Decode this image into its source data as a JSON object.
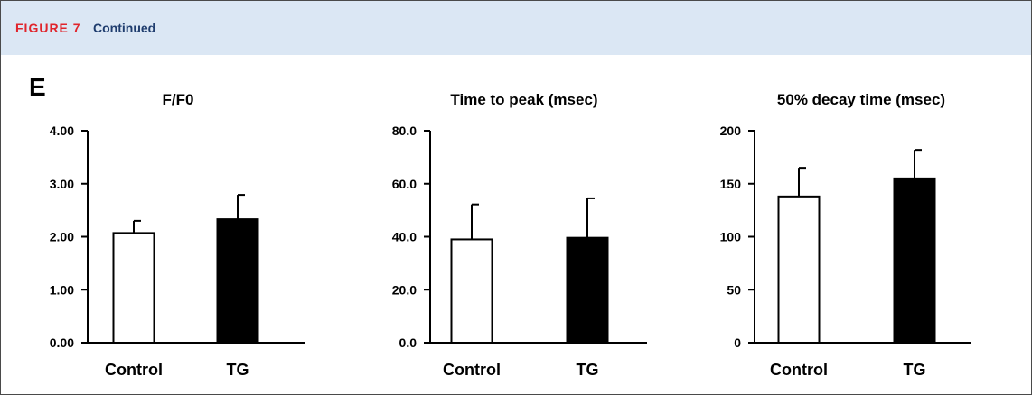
{
  "header": {
    "figure_label": "FIGURE 7",
    "continued": "Continued"
  },
  "panel_letter": "E",
  "colors": {
    "header_bg": "#dbe7f4",
    "figure_label": "#e0242b",
    "continued": "#1f3d6e"
  },
  "chart_data": [
    {
      "type": "bar",
      "title": "F/F0",
      "categories": [
        "Control",
        "TG"
      ],
      "values": [
        2.07,
        2.33
      ],
      "errors": [
        0.23,
        0.46
      ],
      "bar_fills": [
        "#ffffff",
        "#000000"
      ],
      "ylim": [
        0,
        4
      ],
      "yticks": [
        0,
        1,
        2,
        3,
        4
      ],
      "ytick_labels": [
        "0.00",
        "1.00",
        "2.00",
        "3.00",
        "4.00"
      ],
      "xlabel": "",
      "ylabel": "",
      "grid": false
    },
    {
      "type": "bar",
      "title": "Time to peak (msec)",
      "categories": [
        "Control",
        "TG"
      ],
      "values": [
        39.0,
        39.6
      ],
      "errors": [
        13.2,
        14.9
      ],
      "bar_fills": [
        "#ffffff",
        "#000000"
      ],
      "ylim": [
        0,
        80
      ],
      "yticks": [
        0,
        20,
        40,
        60,
        80
      ],
      "ytick_labels": [
        "0.0",
        "20.0",
        "40.0",
        "60.0",
        "80.0"
      ],
      "xlabel": "",
      "ylabel": "",
      "grid": false
    },
    {
      "type": "bar",
      "title": "50% decay time (msec)",
      "categories": [
        "Control",
        "TG"
      ],
      "values": [
        138,
        155
      ],
      "errors": [
        27,
        27
      ],
      "bar_fills": [
        "#ffffff",
        "#000000"
      ],
      "ylim": [
        0,
        200
      ],
      "yticks": [
        0,
        50,
        100,
        150,
        200
      ],
      "ytick_labels": [
        "0",
        "50",
        "100",
        "150",
        "200"
      ],
      "xlabel": "",
      "ylabel": "",
      "grid": false
    }
  ]
}
